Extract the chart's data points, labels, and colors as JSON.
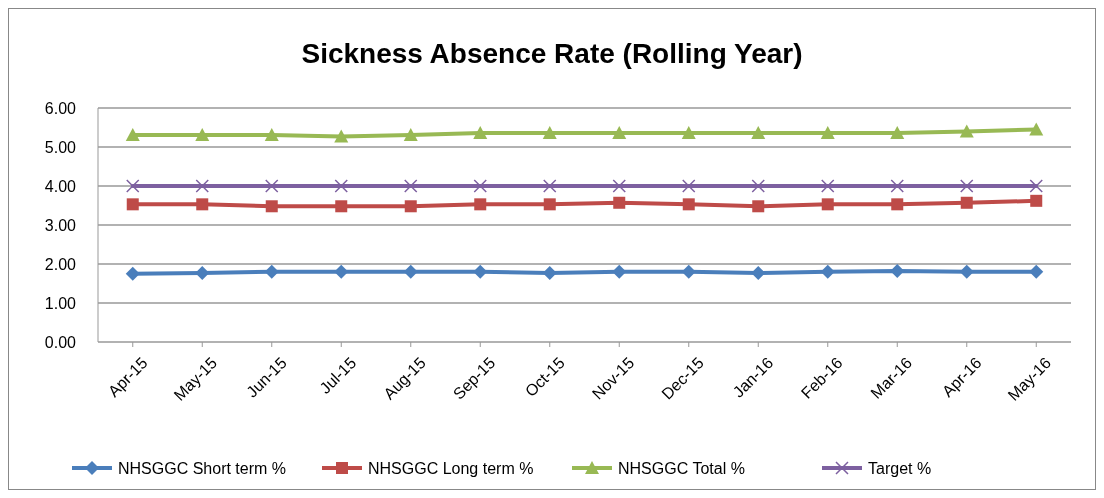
{
  "chart_data": {
    "type": "line",
    "title": "Sickness Absence Rate (Rolling Year)",
    "categories": [
      "Apr-15",
      "May-15",
      "Jun-15",
      "Jul-15",
      "Aug-15",
      "Sep-15",
      "Oct-15",
      "Nov-15",
      "Dec-15",
      "Jan-16",
      "Feb-16",
      "Mar-16",
      "Apr-16",
      "May-16"
    ],
    "series": [
      {
        "name": "NHSGGC Short term %",
        "color": "#4a7ebb",
        "marker": "diamond",
        "values": [
          1.75,
          1.77,
          1.8,
          1.8,
          1.8,
          1.8,
          1.77,
          1.8,
          1.8,
          1.77,
          1.8,
          1.82,
          1.8,
          1.8
        ]
      },
      {
        "name": "NHSGGC Long term %",
        "color": "#be4b48",
        "marker": "square",
        "values": [
          3.53,
          3.53,
          3.48,
          3.48,
          3.48,
          3.53,
          3.53,
          3.57,
          3.53,
          3.48,
          3.53,
          3.53,
          3.57,
          3.62
        ]
      },
      {
        "name": "NHSGGC Total %",
        "color": "#98b954",
        "marker": "triangle",
        "values": [
          5.31,
          5.31,
          5.31,
          5.27,
          5.31,
          5.36,
          5.36,
          5.36,
          5.36,
          5.36,
          5.36,
          5.36,
          5.4,
          5.45
        ]
      },
      {
        "name": "Target %",
        "color": "#7d60a0",
        "marker": "cross",
        "values": [
          4,
          4,
          4,
          4,
          4,
          4,
          4,
          4,
          4,
          4,
          4,
          4,
          4,
          4
        ]
      }
    ],
    "ylim": [
      0,
      6
    ],
    "yticks": [
      {
        "value": 0,
        "label": "0.00"
      },
      {
        "value": 1,
        "label": "1.00"
      },
      {
        "value": 2,
        "label": "2.00"
      },
      {
        "value": 3,
        "label": "3.00"
      },
      {
        "value": 4,
        "label": "4.00"
      },
      {
        "value": 5,
        "label": "5.00"
      },
      {
        "value": 6,
        "label": "6.00"
      }
    ],
    "grid": "y",
    "legend": "bottom"
  }
}
